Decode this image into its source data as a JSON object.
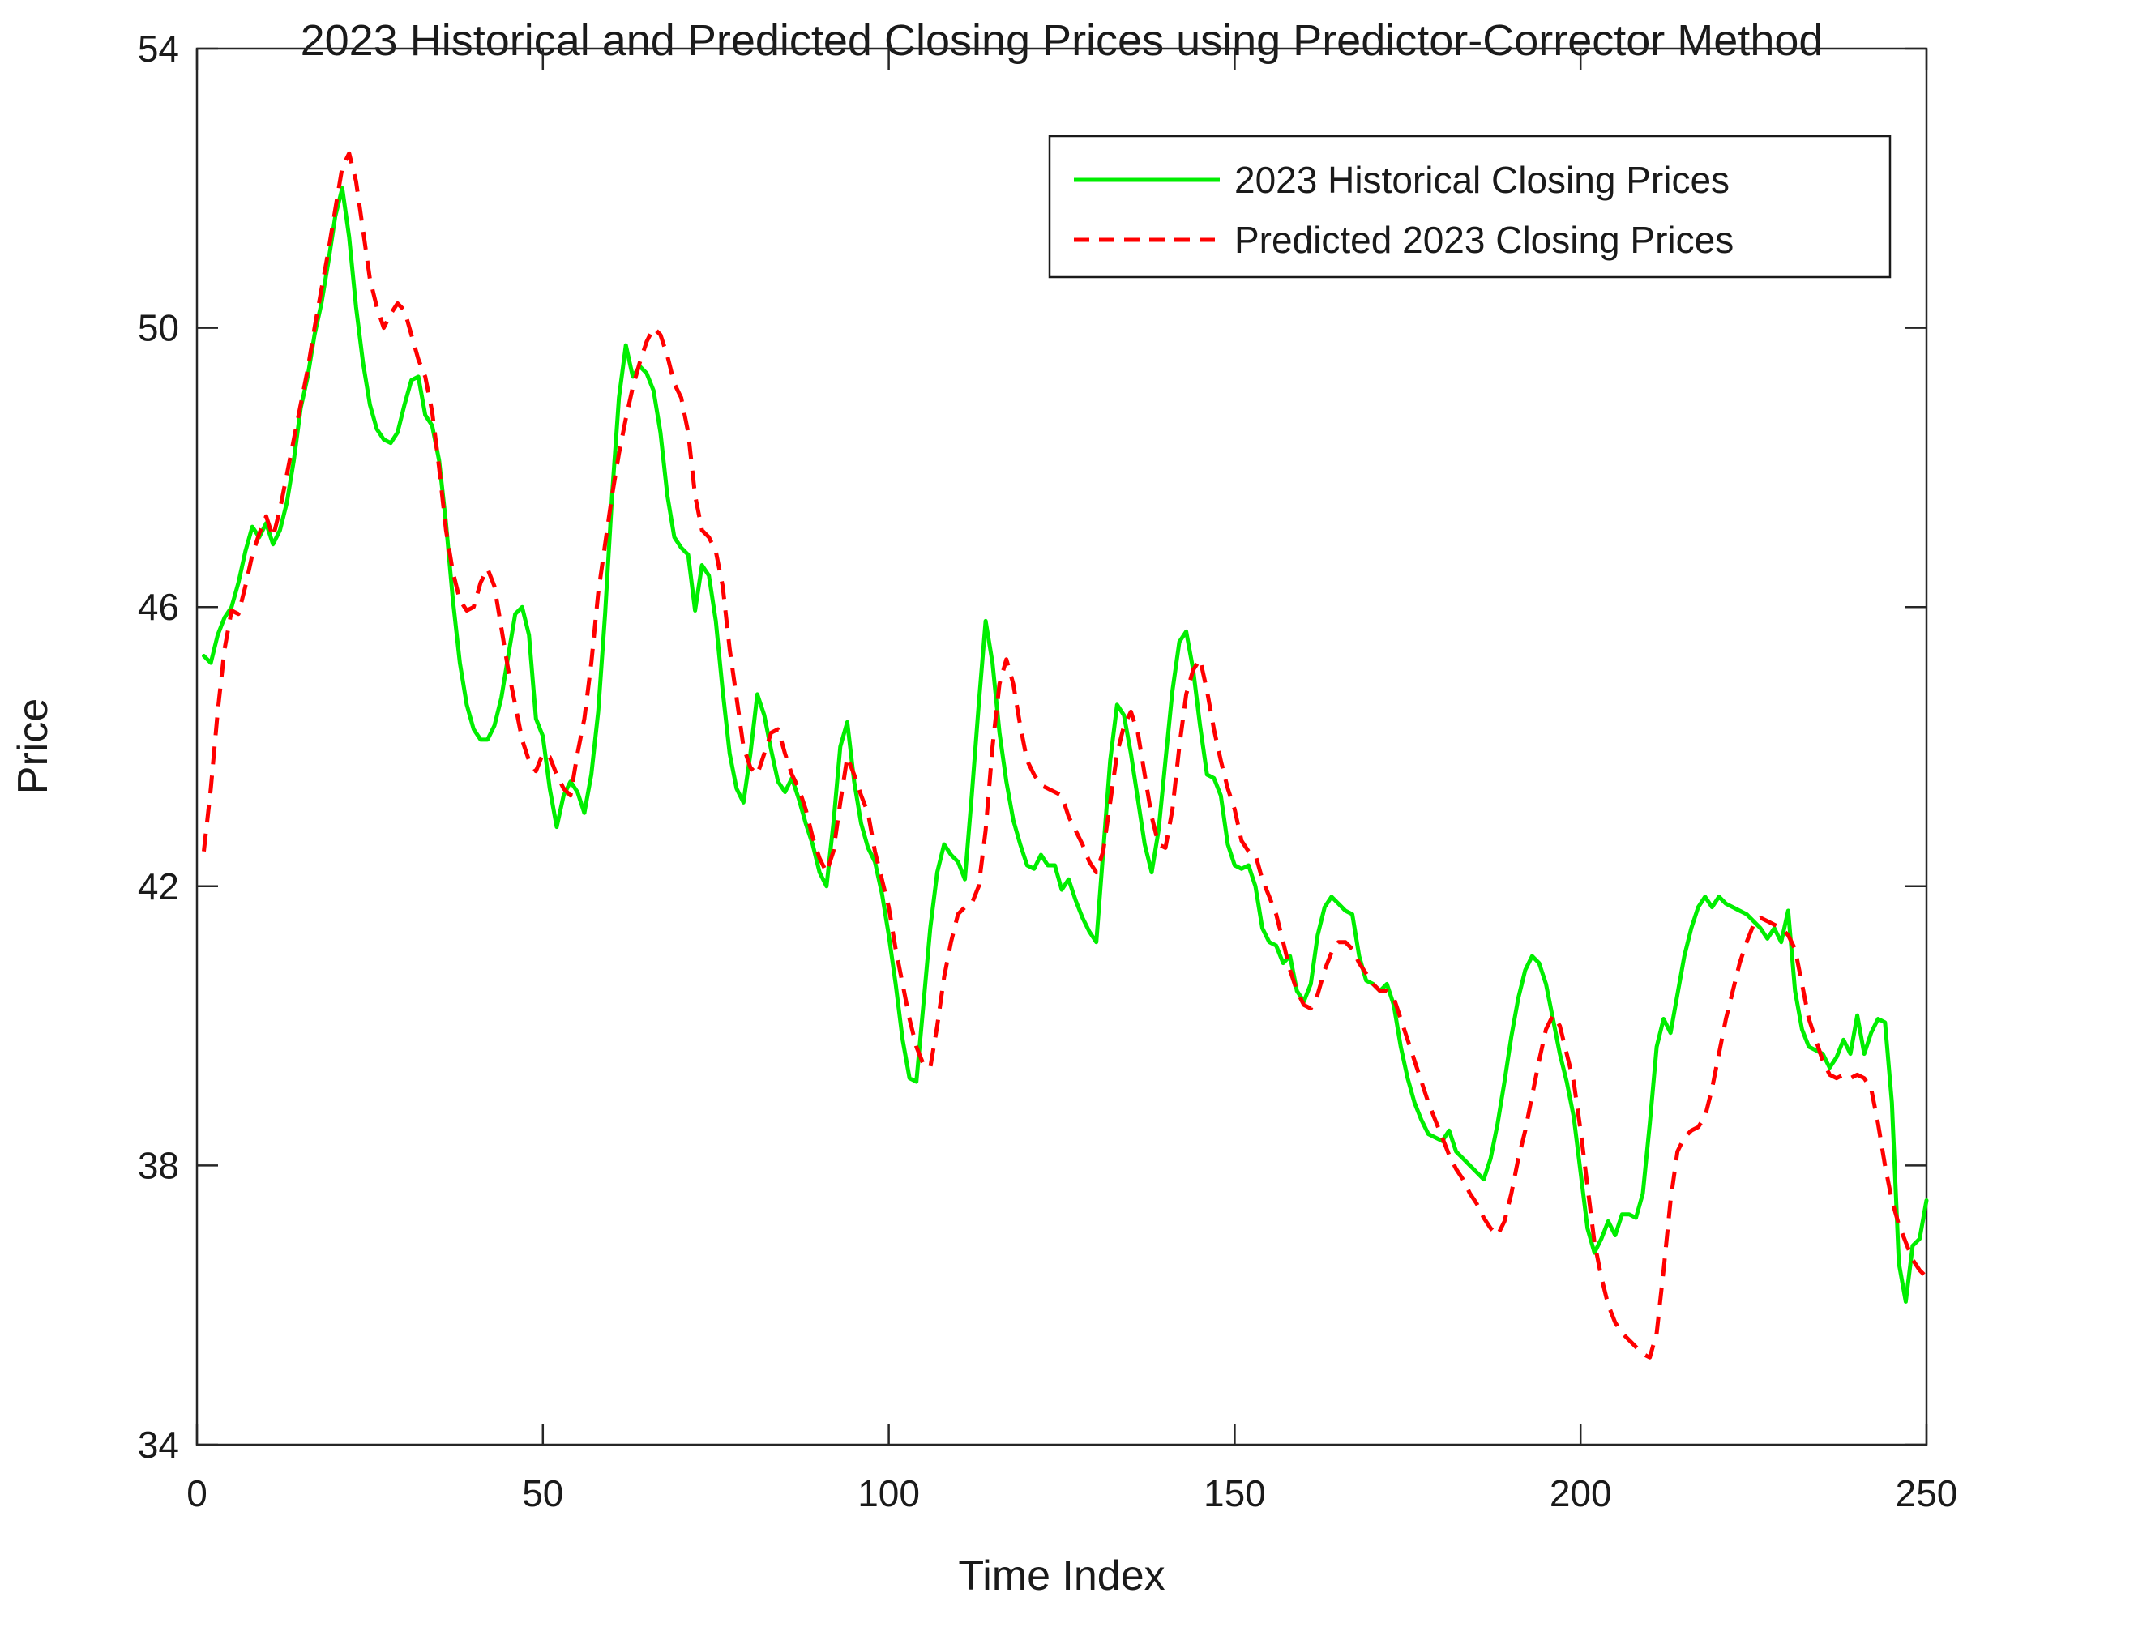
{
  "title": "2023 Historical and Predicted Closing Prices using Predictor-Corrector Method",
  "chart_data": {
    "type": "line",
    "title": "2023 Historical and Predicted Closing Prices using Predictor-Corrector Method",
    "xlabel": "Time Index",
    "ylabel": "Price",
    "xlim": [
      0,
      250
    ],
    "ylim": [
      34,
      54
    ],
    "x_ticks": [
      0,
      50,
      100,
      150,
      200,
      250
    ],
    "y_ticks": [
      34,
      38,
      42,
      46,
      50,
      54
    ],
    "grid": false,
    "legend_position": "top-right",
    "axis_color": "#262626",
    "series": [
      {
        "name": "2023 Historical Closing Prices",
        "color": "#00ee00",
        "style": "solid",
        "x_start": 1,
        "x_step": 1,
        "values": [
          45.3,
          45.2,
          45.6,
          45.85,
          46.0,
          46.35,
          46.8,
          47.15,
          47.0,
          47.2,
          46.9,
          47.1,
          47.5,
          48.1,
          48.85,
          49.3,
          49.9,
          50.35,
          50.95,
          51.6,
          52.0,
          51.3,
          50.3,
          49.5,
          48.9,
          48.55,
          48.4,
          48.35,
          48.5,
          48.9,
          49.25,
          49.3,
          48.75,
          48.6,
          48.1,
          47.2,
          46.1,
          45.2,
          44.6,
          44.25,
          44.1,
          44.1,
          44.3,
          44.7,
          45.3,
          45.9,
          46.0,
          45.6,
          44.4,
          44.15,
          43.4,
          42.85,
          43.3,
          43.5,
          43.35,
          43.05,
          43.6,
          44.5,
          45.9,
          47.6,
          49.0,
          49.75,
          49.3,
          49.45,
          49.35,
          49.1,
          48.5,
          47.6,
          47.0,
          46.85,
          46.75,
          45.95,
          46.6,
          46.45,
          45.8,
          44.8,
          43.9,
          43.4,
          43.2,
          43.9,
          44.75,
          44.45,
          43.95,
          43.5,
          43.35,
          43.55,
          43.25,
          42.9,
          42.6,
          42.2,
          42.0,
          42.9,
          44.0,
          44.35,
          43.5,
          42.9,
          42.55,
          42.35,
          41.9,
          41.3,
          40.6,
          39.8,
          39.25,
          39.2,
          40.3,
          41.4,
          42.2,
          42.6,
          42.45,
          42.35,
          42.1,
          43.3,
          44.6,
          45.8,
          45.2,
          44.2,
          43.5,
          42.95,
          42.6,
          42.3,
          42.25,
          42.45,
          42.3,
          42.3,
          41.95,
          42.1,
          41.8,
          41.55,
          41.35,
          41.2,
          42.5,
          43.8,
          44.6,
          44.45,
          43.9,
          43.25,
          42.6,
          42.2,
          42.8,
          43.8,
          44.8,
          45.5,
          45.65,
          45.1,
          44.3,
          43.6,
          43.55,
          43.3,
          42.6,
          42.3,
          42.25,
          42.3,
          42.0,
          41.4,
          41.2,
          41.15,
          40.9,
          41.0,
          40.5,
          40.35,
          40.6,
          41.3,
          41.7,
          41.85,
          41.75,
          41.65,
          41.6,
          41.0,
          40.65,
          40.6,
          40.5,
          40.6,
          40.3,
          39.7,
          39.25,
          38.9,
          38.65,
          38.45,
          38.4,
          38.35,
          38.5,
          38.2,
          38.1,
          38.0,
          37.9,
          37.8,
          38.1,
          38.6,
          39.2,
          39.85,
          40.4,
          40.8,
          41.0,
          40.9,
          40.6,
          40.1,
          39.6,
          39.2,
          38.7,
          37.9,
          37.1,
          36.75,
          36.95,
          37.2,
          37.0,
          37.3,
          37.3,
          37.25,
          37.6,
          38.6,
          39.7,
          40.1,
          39.9,
          40.45,
          41.0,
          41.4,
          41.7,
          41.85,
          41.7,
          41.85,
          41.75,
          41.7,
          41.65,
          41.6,
          41.5,
          41.4,
          41.25,
          41.4,
          41.2,
          41.65,
          40.5,
          39.95,
          39.7,
          39.65,
          39.6,
          39.4,
          39.55,
          39.8,
          39.6,
          40.15,
          39.6,
          39.9,
          40.1,
          40.05,
          38.9,
          36.6,
          36.05,
          36.85,
          36.95,
          37.5
        ]
      },
      {
        "name": "Predicted 2023 Closing Prices",
        "color": "#ff0000",
        "style": "dashed",
        "x_start": 1,
        "x_step": 1,
        "values": [
          42.5,
          43.4,
          44.5,
          45.4,
          45.95,
          45.9,
          46.3,
          46.75,
          47.05,
          47.3,
          47.0,
          47.4,
          47.9,
          48.4,
          48.9,
          49.4,
          50.0,
          50.55,
          51.1,
          51.7,
          52.3,
          52.5,
          52.1,
          51.4,
          50.7,
          50.3,
          50.0,
          50.2,
          50.35,
          50.25,
          49.9,
          49.55,
          49.3,
          48.8,
          48.0,
          47.1,
          46.5,
          46.1,
          45.95,
          46.0,
          46.35,
          46.55,
          46.3,
          45.7,
          45.1,
          44.6,
          44.1,
          43.8,
          43.65,
          43.9,
          43.85,
          43.6,
          43.4,
          43.3,
          43.9,
          44.4,
          45.2,
          46.2,
          46.9,
          47.6,
          48.2,
          48.7,
          49.15,
          49.5,
          49.8,
          50.0,
          49.9,
          49.6,
          49.2,
          49.0,
          48.5,
          47.6,
          47.1,
          47.0,
          46.8,
          46.3,
          45.4,
          44.7,
          44.0,
          43.7,
          43.6,
          43.9,
          44.2,
          44.25,
          43.9,
          43.6,
          43.4,
          43.1,
          42.7,
          42.4,
          42.2,
          42.5,
          43.2,
          43.85,
          43.6,
          43.3,
          43.05,
          42.5,
          42.1,
          41.7,
          41.1,
          40.6,
          40.1,
          39.7,
          39.45,
          39.4,
          40.0,
          40.7,
          41.2,
          41.6,
          41.7,
          41.75,
          42.0,
          42.8,
          44.0,
          44.9,
          45.25,
          44.9,
          44.3,
          43.8,
          43.6,
          43.45,
          43.4,
          43.35,
          43.3,
          43.0,
          42.8,
          42.6,
          42.35,
          42.2,
          42.5,
          43.2,
          43.9,
          44.3,
          44.5,
          44.2,
          43.6,
          43.0,
          42.6,
          42.55,
          43.1,
          44.0,
          44.75,
          45.1,
          45.25,
          44.8,
          44.25,
          43.8,
          43.4,
          43.1,
          42.65,
          42.5,
          42.45,
          42.1,
          41.85,
          41.6,
          41.2,
          40.8,
          40.5,
          40.3,
          40.25,
          40.45,
          40.8,
          41.05,
          41.2,
          41.2,
          41.1,
          40.9,
          40.75,
          40.6,
          40.5,
          40.5,
          40.4,
          40.1,
          39.8,
          39.5,
          39.2,
          38.9,
          38.65,
          38.4,
          38.15,
          37.95,
          37.8,
          37.6,
          37.45,
          37.25,
          37.1,
          37.0,
          37.2,
          37.6,
          38.1,
          38.5,
          39.0,
          39.5,
          39.95,
          40.15,
          40.0,
          39.6,
          39.2,
          38.5,
          37.7,
          36.9,
          36.4,
          36.0,
          35.75,
          35.6,
          35.5,
          35.4,
          35.3,
          35.25,
          35.6,
          36.5,
          37.5,
          38.2,
          38.4,
          38.5,
          38.55,
          38.7,
          39.1,
          39.6,
          40.1,
          40.5,
          40.9,
          41.2,
          41.45,
          41.55,
          41.5,
          41.45,
          41.4,
          41.3,
          41.1,
          40.6,
          40.1,
          39.8,
          39.5,
          39.3,
          39.25,
          39.3,
          39.25,
          39.3,
          39.25,
          39.1,
          38.6,
          38.0,
          37.5,
          37.15,
          36.9,
          36.65,
          36.5,
          36.4
        ]
      }
    ]
  }
}
